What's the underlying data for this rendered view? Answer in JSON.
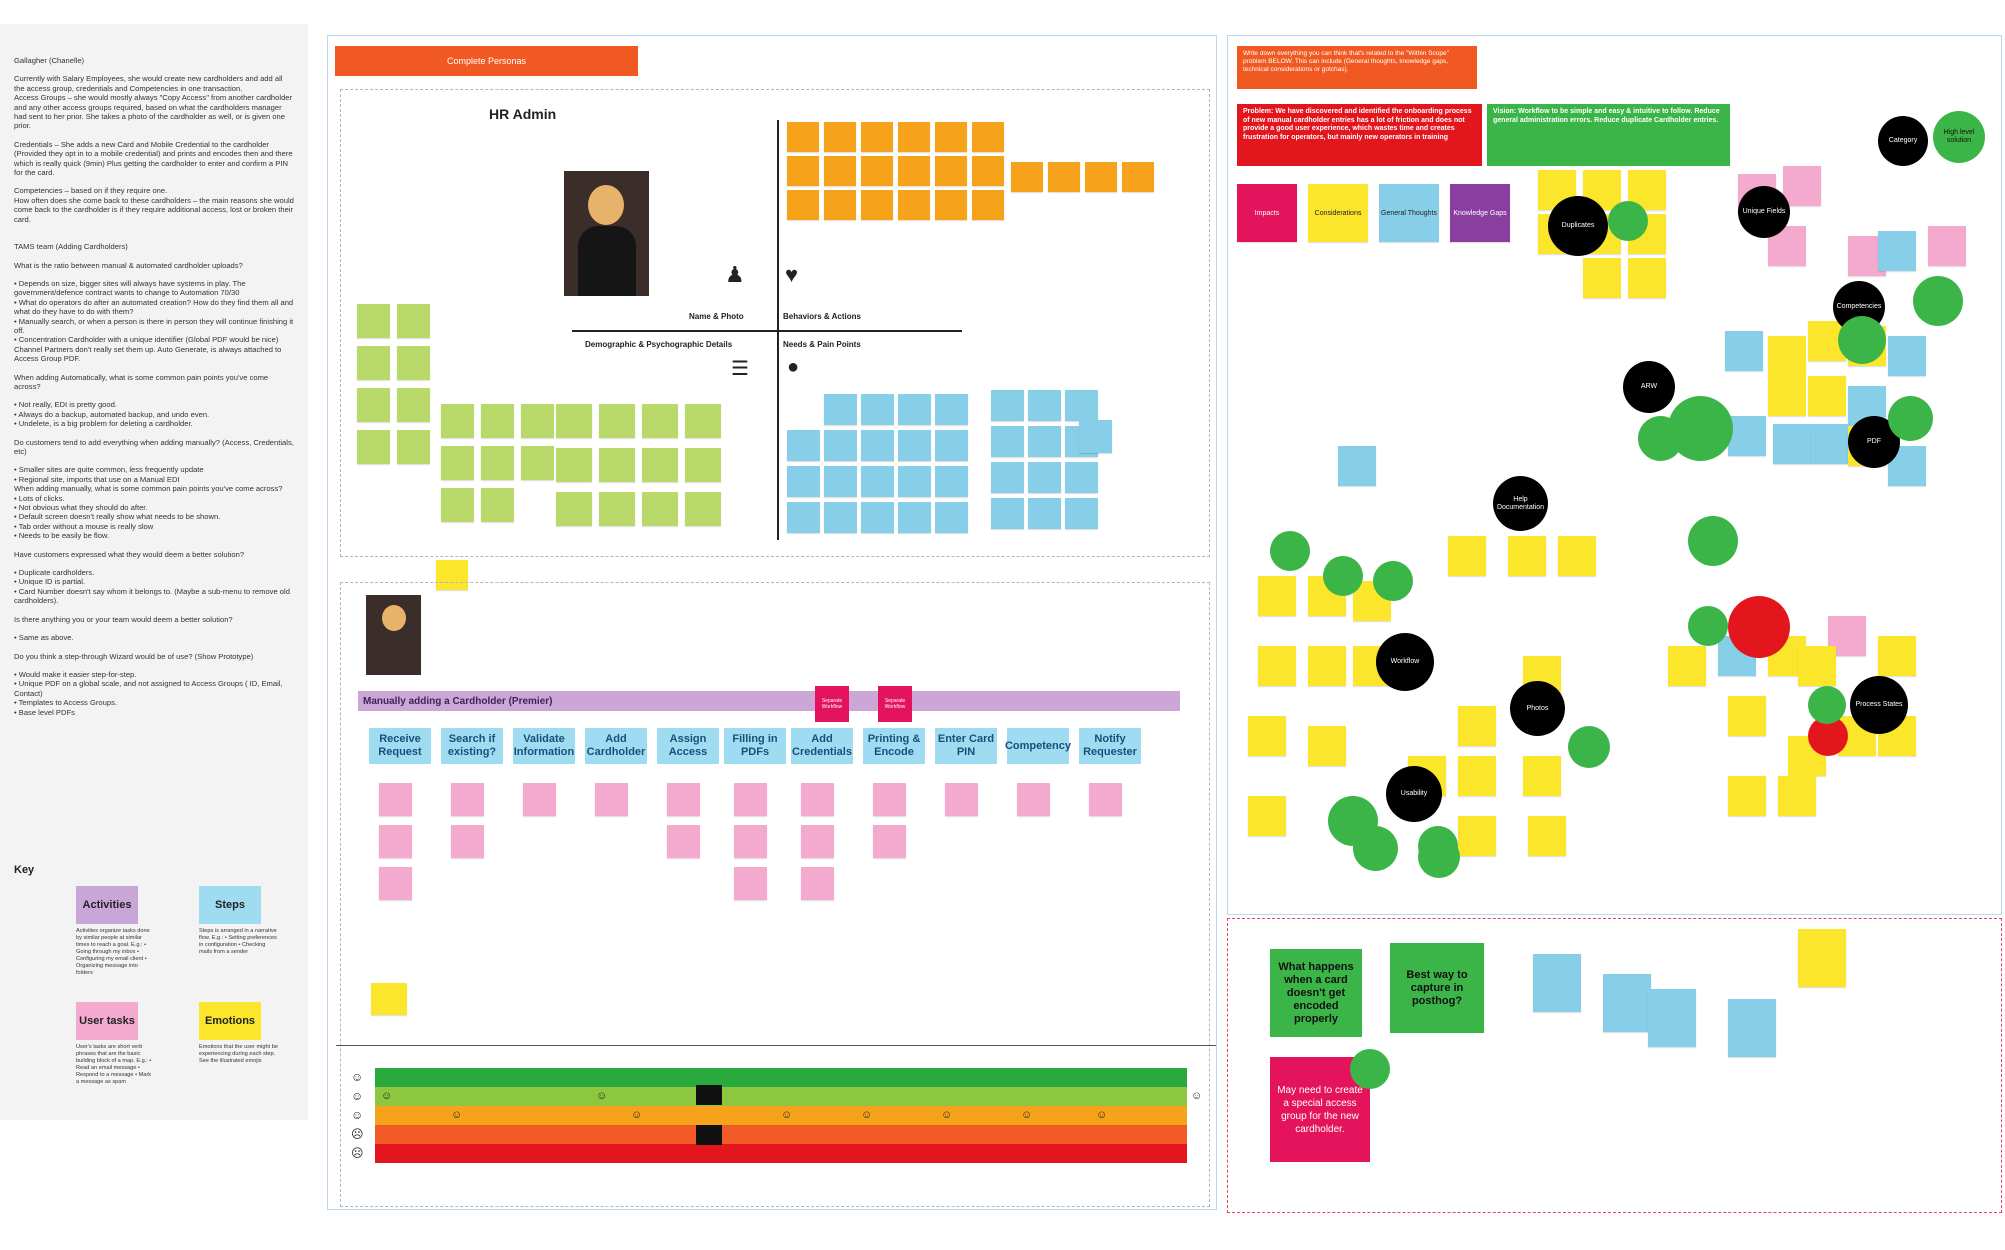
{
  "notes": {
    "paragraphs": [
      "Gallagher (Chanelle)",
      "",
      "Currently with Salary Employees, she would create new cardholders and add all the access group, credentials and Competencies in one transaction.",
      "Access Groups – she would mostly always \"Copy Access\" from another cardholder and any other access groups required, based on what the cardholders manager had sent to her prior. She takes a photo of the cardholder as well, or is given one prior.",
      "",
      "Credentials – She adds a new Card and Mobile Credential to the cardholder (Provided they opt in to a mobile credential) and prints and encodes then and there which is really quick (9min) Plus getting the cardholder to enter and confirm a PIN for the card.",
      "",
      "Competencies – based on if they require one.",
      "How often does she come back to these cardholders – the main reasons she would come back to the cardholder is if they require additional access, lost or broken their card.",
      "",
      "",
      "TAMS team (Adding Cardholders)",
      "",
      "What is the ratio between manual & automated cardholder uploads?",
      "",
      "• Depends on size, bigger sites will always have systems in play. The government/defence contract wants to change to Automation 70/30",
      "• What do operators do after an automated creation? How do they find them all and what do they have to do with them?",
      "• Manually search, or when a person is there in person they will continue finishing it off.",
      "• Concentration Cardholder with a unique identifier (Global PDF would be nice) Channel Partners don't really set them up. Auto Generate, is always attached to Access Group PDF.",
      "",
      "When adding Automatically, what is some common pain points you've come across?",
      "",
      "• Not really, EDI is pretty good.",
      "• Always do a backup, automated backup, and undo even.",
      "• Undelete, is a big problem for deleting a cardholder.",
      "",
      "Do customers tend to add everything when adding manually? (Access, Credentials, etc)",
      "",
      "• Smaller sites are quite common, less frequently update",
      "• Regional site, imports that use on a Manual EDI",
      "When adding manually, what is some common pain points you've come across?",
      "• Lots of clicks.",
      "• Not obvious what they should do after.",
      "• Default screen doesn't really show what needs to be shown.",
      "• Tab order without a mouse is really slow",
      "• Needs to be easily be flow.",
      "",
      "Have customers expressed what they would deem a better solution?",
      "",
      "• Duplicate cardholders.",
      "• Unique ID is partial.",
      "• Card Number doesn't say whom it belongs to. (Maybe a sub-menu to remove old cardholders).",
      "",
      "Is there anything you or your team would deem a better solution?",
      "",
      "• Same as above.",
      "",
      "Do you think a step-through Wizard would be of use? (Show Prototype)",
      "",
      "• Would make it easier step-for-step.",
      "• Unique PDF on a global scale, and not assigned to Access Groups ( ID, Email, Contact)",
      "• Templates to Access Groups.",
      "• Base level PDFs"
    ]
  },
  "key": {
    "title": "Key",
    "items": [
      {
        "label": "Activities",
        "color": "#c9a6d8",
        "desc": "Activities organize tasks done by similar people at similar times to reach a goal. E.g.: • Going through my inbox • Configuring my email client • Organizing message into folders"
      },
      {
        "label": "Steps",
        "color": "#9fdcf2",
        "desc": "Steps is arranged in a narrative flow. E.g.: • Setting preferences in configuration • Checking mails from a sender"
      },
      {
        "label": "User tasks",
        "color": "#f4a9cf",
        "desc": "User's tasks are short verb phrases that are the basic building block of a map. E.g.: • Read an email message • Respond to a message • Mark a message as spam"
      },
      {
        "label": "Emotions",
        "color": "#fbe62b",
        "desc": "Emotions that the user might be experiencing during each step. See the illustrated emojis"
      }
    ]
  },
  "board": {
    "header": "Complete Personas",
    "persona": {
      "title": "HR Admin",
      "q_name_photo": "Name & Photo",
      "q_behaviors": "Behaviors & Actions",
      "q_demographic": "Demographic & Psychographic Details",
      "q_needs": "Needs & Pain Points"
    },
    "journey": {
      "title": "Manually adding a Cardholder (Premier)",
      "steps": [
        "Receive Request",
        "Search if existing?",
        "Validate Information",
        "Add Cardholder",
        "Assign Access",
        "Filling in PDFs",
        "Add Credentials",
        "Printing & Encode",
        "Enter Card PIN",
        "Competency",
        "Notify Requester"
      ],
      "flags": [
        "Separate Workflow",
        "Separate Workflow"
      ]
    }
  },
  "scope": {
    "intro": "Write down everything you can think that's related to the \"Within Scope\" problem BELOW. This can include (General thoughts, knowledge gaps, technical considerations or gotchas).",
    "problem": "Problem: We have discovered and identified the onboarding process of new manual cardholder entries has a lot of friction and does not provide a good user experience, which wastes time and creates frustration for operators, but mainly new operators in training",
    "vision": "Vision: Workflow to be simple and easy & intuitive to follow. Reduce general administration errors. Reduce duplicate Cardholder entries.",
    "categories": [
      "Impacts",
      "Considerations",
      "General Thoughts",
      "Knowledge Gaps"
    ],
    "category_colors": [
      "#e4145c",
      "#fbe62b",
      "#87cfe8",
      "#8a3fa0"
    ],
    "circles": [
      "Category",
      "High level solution",
      "Duplicates",
      "Unique Fields",
      "Competencies",
      "ARW",
      "PDF",
      "Help Documentation",
      "Workflow",
      "Photos",
      "Usability",
      "Process States"
    ]
  },
  "out_scope": {
    "cards": [
      "What happens when a card doesn't get encoded properly",
      "Best way to capture in posthog?",
      "May need to create a special access group for the new cardholder."
    ]
  },
  "emotion_faces": [
    "☺",
    "☺",
    "☺",
    "☹",
    "☹"
  ]
}
